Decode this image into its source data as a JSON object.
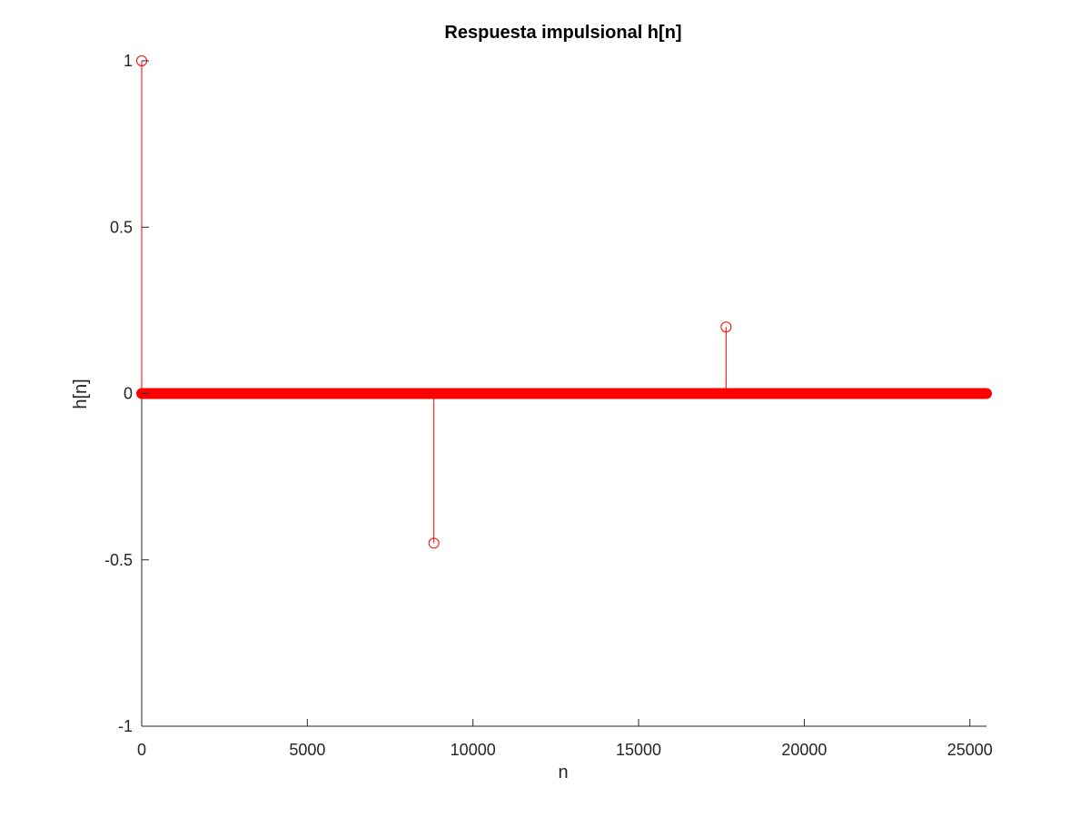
{
  "chart_data": {
    "type": "stem",
    "title": "Respuesta impulsional h[n]",
    "xlabel": "n",
    "ylabel": "h[n]",
    "xlim": [
      0,
      25500
    ],
    "ylim": [
      -1,
      1
    ],
    "xticks": [
      0,
      5000,
      10000,
      15000,
      20000,
      25000
    ],
    "xtick_labels": [
      "0",
      "5000",
      "10000",
      "15000",
      "20000",
      "25000"
    ],
    "yticks": [
      -1,
      -0.5,
      0,
      0.5,
      1
    ],
    "ytick_labels": [
      "-1",
      "-0.5",
      "0",
      "0.5",
      "1"
    ],
    "grid": false,
    "color": "#ff0000",
    "n_range": [
      0,
      25500
    ],
    "baseline_value": 0,
    "nonzero_samples": [
      {
        "n": 0,
        "value": 1
      },
      {
        "n": 8820,
        "value": -0.45
      },
      {
        "n": 17640,
        "value": 0.2
      }
    ]
  }
}
